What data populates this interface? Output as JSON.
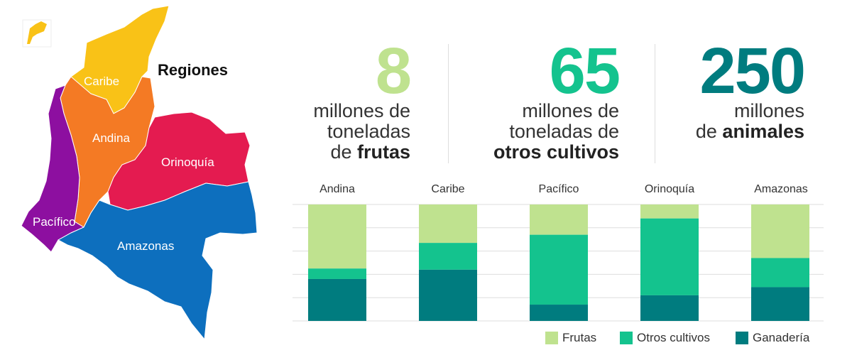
{
  "map": {
    "title": "Regiones",
    "regions": [
      {
        "key": "caribe",
        "label": "Caribe",
        "color": "#f9c217"
      },
      {
        "key": "andina",
        "label": "Andina",
        "color": "#f47a24"
      },
      {
        "key": "orinoquia",
        "label": "Orinoquía",
        "color": "#e41b50"
      },
      {
        "key": "pacifico",
        "label": "Pacífico",
        "color": "#8d0fa0"
      },
      {
        "key": "amazonas",
        "label": "Amazonas",
        "color": "#0d6fbe"
      }
    ]
  },
  "stats": [
    {
      "number": "8",
      "line1": "millones de",
      "line2": "toneladas",
      "line3_prefix": "de ",
      "line3_bold": "frutas",
      "color": "#bfe28f"
    },
    {
      "number": "65",
      "line1": "millones de",
      "line2": "toneladas de",
      "line3_prefix": "",
      "line3_bold": "otros cultivos",
      "color": "#14c38e"
    },
    {
      "number": "250",
      "line1": "millones",
      "line2": "",
      "line3_prefix": "de ",
      "line3_bold": "animales",
      "color": "#007c7f"
    }
  ],
  "chart_data": {
    "type": "bar",
    "stacked": true,
    "normalized": true,
    "categories": [
      "Andina",
      "Caribe",
      "Pacífico",
      "Orinoquía",
      "Amazonas"
    ],
    "series": [
      {
        "name": "Frutas",
        "color": "#bfe28f",
        "values": [
          55,
          33,
          26,
          12,
          46
        ]
      },
      {
        "name": "Otros cultivos",
        "color": "#14c38e",
        "values": [
          9,
          23,
          60,
          66,
          25
        ]
      },
      {
        "name": "Ganadería",
        "color": "#007c7f",
        "values": [
          36,
          44,
          14,
          22,
          29
        ]
      }
    ],
    "ylim": [
      0,
      100
    ],
    "grid": true,
    "legend_position": "bottom-right"
  }
}
